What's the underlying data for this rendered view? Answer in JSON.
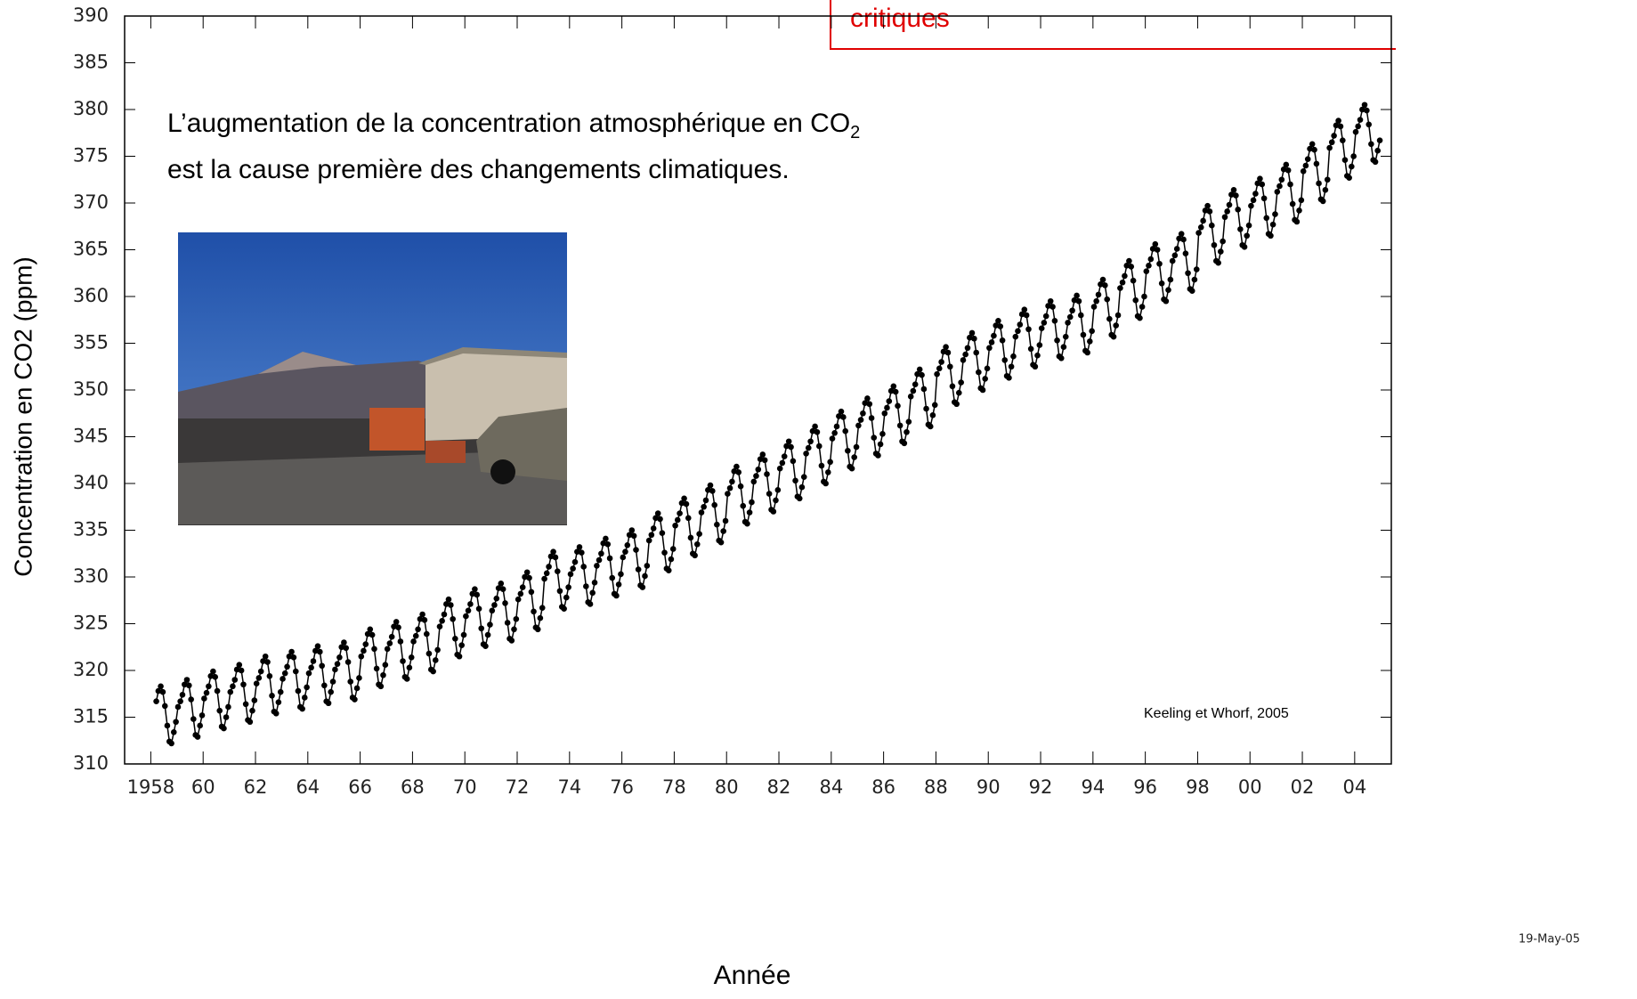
{
  "chart_data": {
    "type": "line",
    "banner": "critiques",
    "annotation": {
      "line1": "L’augmentation de la concentration atmosphérique en CO",
      "subscript": "2",
      "line2": "est la cause première des changements climatiques."
    },
    "source": "Keeling et Whorf, 2005",
    "date_stamp": "19-May-05",
    "xlabel": "Année",
    "ylabel": "Concentration en CO2 (ppm)",
    "color": "#000000",
    "grid": false,
    "xlim": [
      1957,
      2005.4
    ],
    "ylim": [
      310,
      390
    ],
    "yticks": [
      310,
      315,
      320,
      325,
      330,
      335,
      340,
      345,
      350,
      355,
      360,
      365,
      370,
      375,
      380,
      385,
      390
    ],
    "xticks": [
      {
        "value": 1958,
        "label": "1958"
      },
      {
        "value": 1960,
        "label": "60"
      },
      {
        "value": 1962,
        "label": "62"
      },
      {
        "value": 1964,
        "label": "64"
      },
      {
        "value": 1966,
        "label": "66"
      },
      {
        "value": 1968,
        "label": "68"
      },
      {
        "value": 1970,
        "label": "70"
      },
      {
        "value": 1972,
        "label": "72"
      },
      {
        "value": 1974,
        "label": "74"
      },
      {
        "value": 1976,
        "label": "76"
      },
      {
        "value": 1978,
        "label": "78"
      },
      {
        "value": 1980,
        "label": "80"
      },
      {
        "value": 1982,
        "label": "82"
      },
      {
        "value": 1984,
        "label": "84"
      },
      {
        "value": 1986,
        "label": "86"
      },
      {
        "value": 1988,
        "label": "88"
      },
      {
        "value": 1990,
        "label": "90"
      },
      {
        "value": 1992,
        "label": "92"
      },
      {
        "value": 1994,
        "label": "94"
      },
      {
        "value": 1996,
        "label": "96"
      },
      {
        "value": 1998,
        "label": "98"
      },
      {
        "value": 2000,
        "label": "00"
      },
      {
        "value": 2002,
        "label": "02"
      },
      {
        "value": 2004,
        "label": "04"
      }
    ],
    "x": [
      1958.21,
      1958.29,
      1958.38,
      1958.46,
      1958.54,
      1958.63,
      1958.71,
      1958.79,
      1958.88,
      1958.96,
      1959.04,
      1959.13,
      1959.21,
      1959.29,
      1959.38,
      1959.46,
      1959.54,
      1959.63,
      1959.71,
      1959.79,
      1959.88,
      1959.96,
      1960.04,
      1960.13,
      1960.21,
      1960.29,
      1960.38,
      1960.46,
      1960.54,
      1960.63,
      1960.71,
      1960.79,
      1960.88,
      1960.96,
      1961.04,
      1961.13,
      1961.21,
      1961.29,
      1961.38,
      1961.46,
      1961.54,
      1961.63,
      1961.71,
      1961.79,
      1961.88,
      1961.96,
      1962.04,
      1962.13,
      1962.21,
      1962.29,
      1962.38,
      1962.46,
      1962.54,
      1962.63,
      1962.71,
      1962.79,
      1962.88,
      1962.96,
      1963.04,
      1963.13,
      1963.21,
      1963.29,
      1963.38,
      1963.46,
      1963.54,
      1963.63,
      1963.71,
      1963.79,
      1963.88,
      1963.96,
      1964.04,
      1964.13,
      1964.21,
      1964.29,
      1964.38,
      1964.46,
      1964.54,
      1964.63,
      1964.71,
      1964.79,
      1964.88,
      1964.96,
      1965.04,
      1965.13,
      1965.21,
      1965.29,
      1965.38,
      1965.46,
      1965.54,
      1965.63,
      1965.71,
      1965.79,
      1965.88,
      1965.96,
      1966.04,
      1966.13,
      1966.21,
      1966.29,
      1966.38,
      1966.46,
      1966.54,
      1966.63,
      1966.71,
      1966.79,
      1966.88,
      1966.96,
      1967.04,
      1967.13,
      1967.21,
      1967.29,
      1967.38,
      1967.46,
      1967.54,
      1967.63,
      1967.71,
      1967.79,
      1967.88,
      1967.96,
      1968.04,
      1968.13,
      1968.21,
      1968.29,
      1968.38,
      1968.46,
      1968.54,
      1968.63,
      1968.71,
      1968.79,
      1968.88,
      1968.96,
      1969.04,
      1969.13,
      1969.21,
      1969.29,
      1969.38,
      1969.46,
      1969.54,
      1969.63,
      1969.71,
      1969.79,
      1969.88,
      1969.96,
      1970.04,
      1970.13,
      1970.21,
      1970.29,
      1970.38,
      1970.46,
      1970.54,
      1970.63,
      1970.71,
      1970.79,
      1970.88,
      1970.96,
      1971.04,
      1971.13,
      1971.21,
      1971.29,
      1971.38,
      1971.46,
      1971.54,
      1971.63,
      1971.71,
      1971.79,
      1971.88,
      1971.96,
      1972.04,
      1972.13,
      1972.21,
      1972.29,
      1972.38,
      1972.46,
      1972.54,
      1972.63,
      1972.71,
      1972.79,
      1972.88,
      1972.96,
      1973.04,
      1973.13,
      1973.21,
      1973.29,
      1973.38,
      1973.46,
      1973.54,
      1973.63,
      1973.71,
      1973.79,
      1973.88,
      1973.96,
      1974.04,
      1974.13,
      1974.21,
      1974.29,
      1974.38,
      1974.46,
      1974.54,
      1974.63,
      1974.71,
      1974.79,
      1974.88,
      1974.96,
      1975.04,
      1975.13,
      1975.21,
      1975.29,
      1975.38,
      1975.46,
      1975.54,
      1975.63,
      1975.71,
      1975.79,
      1975.88,
      1975.96,
      1976.04,
      1976.13,
      1976.21,
      1976.29,
      1976.38,
      1976.46,
      1976.54,
      1976.63,
      1976.71,
      1976.79,
      1976.88,
      1976.96,
      1977.04,
      1977.13,
      1977.21,
      1977.29,
      1977.38,
      1977.46,
      1977.54,
      1977.63,
      1977.71,
      1977.79,
      1977.88,
      1977.96,
      1978.04,
      1978.13,
      1978.21,
      1978.29,
      1978.38,
      1978.46,
      1978.54,
      1978.63,
      1978.71,
      1978.79,
      1978.88,
      1978.96,
      1979.04,
      1979.13,
      1979.21,
      1979.29,
      1979.38,
      1979.46,
      1979.54,
      1979.63,
      1979.71,
      1979.79,
      1979.88,
      1979.96,
      1980.04,
      1980.13,
      1980.21,
      1980.29,
      1980.38,
      1980.46,
      1980.54,
      1980.63,
      1980.71,
      1980.79,
      1980.88,
      1980.96,
      1981.04,
      1981.13,
      1981.21,
      1981.29,
      1981.38,
      1981.46,
      1981.54,
      1981.63,
      1981.71,
      1981.79,
      1981.88,
      1981.96,
      1982.04,
      1982.13,
      1982.21,
      1982.29,
      1982.38,
      1982.46,
      1982.54,
      1982.63,
      1982.71,
      1982.79,
      1982.88,
      1982.96,
      1983.04,
      1983.13,
      1983.21,
      1983.29,
      1983.38,
      1983.46,
      1983.54,
      1983.63,
      1983.71,
      1983.79,
      1983.88,
      1983.96,
      1984.04,
      1984.13,
      1984.21,
      1984.29,
      1984.38,
      1984.46,
      1984.54,
      1984.63,
      1984.71,
      1984.79,
      1984.88,
      1984.96,
      1985.04,
      1985.13,
      1985.21,
      1985.29,
      1985.38,
      1985.46,
      1985.54,
      1985.63,
      1985.71,
      1985.79,
      1985.88,
      1985.96,
      1986.04,
      1986.13,
      1986.21,
      1986.29,
      1986.38,
      1986.46,
      1986.54,
      1986.63,
      1986.71,
      1986.79,
      1986.88,
      1986.96,
      1987.04,
      1987.13,
      1987.21,
      1987.29,
      1987.38,
      1987.46,
      1987.54,
      1987.63,
      1987.71,
      1987.79,
      1987.88,
      1987.96,
      1988.04,
      1988.13,
      1988.21,
      1988.29,
      1988.38,
      1988.46,
      1988.54,
      1988.63,
      1988.71,
      1988.79,
      1988.88,
      1988.96,
      1989.04,
      1989.13,
      1989.21,
      1989.29,
      1989.38,
      1989.46,
      1989.54,
      1989.63,
      1989.71,
      1989.79,
      1989.88,
      1989.96,
      1990.04,
      1990.13,
      1990.21,
      1990.29,
      1990.38,
      1990.46,
      1990.54,
      1990.63,
      1990.71,
      1990.79,
      1990.88,
      1990.96,
      1991.04,
      1991.13,
      1991.21,
      1991.29,
      1991.38,
      1991.46,
      1991.54,
      1991.63,
      1991.71,
      1991.79,
      1991.88,
      1991.96,
      1992.04,
      1992.13,
      1992.21,
      1992.29,
      1992.38,
      1992.46,
      1992.54,
      1992.63,
      1992.71,
      1992.79,
      1992.88,
      1992.96,
      1993.04,
      1993.13,
      1993.21,
      1993.29,
      1993.38,
      1993.46,
      1993.54,
      1993.63,
      1993.71,
      1993.79,
      1993.88,
      1993.96,
      1994.04,
      1994.13,
      1994.21,
      1994.29,
      1994.38,
      1994.46,
      1994.54,
      1994.63,
      1994.71,
      1994.79,
      1994.88,
      1994.96,
      1995.04,
      1995.13,
      1995.21,
      1995.29,
      1995.38,
      1995.46,
      1995.54,
      1995.63,
      1995.71,
      1995.79,
      1995.88,
      1995.96,
      1996.04,
      1996.13,
      1996.21,
      1996.29,
      1996.38,
      1996.46,
      1996.54,
      1996.63,
      1996.71,
      1996.79,
      1996.88,
      1996.96,
      1997.04,
      1997.13,
      1997.21,
      1997.29,
      1997.38,
      1997.46,
      1997.54,
      1997.63,
      1997.71,
      1997.79,
      1997.88,
      1997.96,
      1998.04,
      1998.13,
      1998.21,
      1998.29,
      1998.38,
      1998.46,
      1998.54,
      1998.63,
      1998.71,
      1998.79,
      1998.88,
      1998.96,
      1999.04,
      1999.13,
      1999.21,
      1999.29,
      1999.38,
      1999.46,
      1999.54,
      1999.63,
      1999.71,
      1999.79,
      1999.88,
      1999.96,
      2000.04,
      2000.13,
      2000.21,
      2000.29,
      2000.38,
      2000.46,
      2000.54,
      2000.63,
      2000.71,
      2000.79,
      2000.88,
      2000.96,
      2001.04,
      2001.13,
      2001.21,
      2001.29,
      2001.38,
      2001.46,
      2001.54,
      2001.63,
      2001.71,
      2001.79,
      2001.88,
      2001.96,
      2002.04,
      2002.13,
      2002.21,
      2002.29,
      2002.38,
      2002.46,
      2002.54,
      2002.63,
      2002.71,
      2002.79,
      2002.88,
      2002.96,
      2003.04,
      2003.13,
      2003.21,
      2003.29,
      2003.38,
      2003.46,
      2003.54,
      2003.63,
      2003.71,
      2003.79,
      2003.88,
      2003.96,
      2004.04,
      2004.13,
      2004.21,
      2004.29,
      2004.38,
      2004.46,
      2004.54,
      2004.63,
      2004.71,
      2004.79,
      2004.88,
      2004.96
    ],
    "values": [
      316.7,
      317.8,
      318.3,
      317.7,
      316.2,
      314.1,
      312.4,
      312.2,
      313.4,
      314.5,
      316.1,
      316.7,
      317.4,
      318.5,
      319.0,
      318.4,
      316.9,
      314.8,
      313.1,
      312.9,
      314.1,
      315.2,
      317.0,
      317.6,
      318.3,
      319.4,
      319.9,
      319.3,
      317.8,
      315.7,
      314.0,
      313.8,
      315.0,
      316.1,
      317.7,
      318.3,
      319.0,
      320.1,
      320.6,
      320.0,
      318.5,
      316.4,
      314.7,
      314.5,
      315.7,
      316.8,
      318.6,
      319.2,
      319.9,
      321.0,
      321.5,
      320.9,
      319.4,
      317.3,
      315.6,
      315.4,
      316.6,
      317.7,
      319.1,
      319.7,
      320.4,
      321.5,
      322.0,
      321.4,
      319.9,
      317.8,
      316.1,
      315.9,
      317.1,
      318.2,
      319.7,
      320.3,
      321.0,
      322.1,
      322.6,
      322.0,
      320.5,
      318.4,
      316.7,
      316.5,
      317.7,
      318.8,
      320.1,
      320.7,
      321.4,
      322.5,
      323.0,
      322.4,
      320.9,
      318.8,
      317.1,
      316.9,
      318.1,
      319.2,
      321.5,
      322.1,
      322.8,
      323.9,
      324.4,
      323.8,
      322.3,
      320.2,
      318.5,
      318.3,
      319.5,
      320.6,
      322.3,
      322.9,
      323.6,
      324.7,
      325.2,
      324.6,
      323.1,
      321.0,
      319.3,
      319.1,
      320.3,
      321.4,
      323.1,
      323.7,
      324.4,
      325.5,
      326.0,
      325.4,
      323.9,
      321.8,
      320.1,
      319.9,
      321.1,
      322.2,
      324.7,
      325.3,
      326.0,
      327.1,
      327.6,
      327.0,
      325.5,
      323.4,
      321.7,
      321.5,
      322.7,
      323.8,
      325.8,
      326.4,
      327.1,
      328.2,
      328.7,
      328.1,
      326.6,
      324.5,
      322.8,
      322.6,
      323.8,
      324.9,
      326.4,
      327.0,
      327.7,
      328.8,
      329.3,
      328.7,
      327.2,
      325.1,
      323.4,
      323.2,
      324.4,
      325.5,
      327.6,
      328.2,
      328.9,
      330.0,
      330.5,
      329.9,
      328.4,
      326.3,
      324.6,
      324.4,
      325.6,
      326.7,
      329.8,
      330.4,
      331.1,
      332.2,
      332.7,
      332.1,
      330.6,
      328.5,
      326.8,
      326.6,
      327.8,
      328.9,
      330.3,
      330.9,
      331.6,
      332.7,
      333.2,
      332.6,
      331.1,
      329.0,
      327.3,
      327.1,
      328.3,
      329.4,
      331.2,
      331.8,
      332.5,
      333.6,
      334.1,
      333.5,
      332.0,
      329.9,
      328.2,
      328.0,
      329.2,
      330.3,
      332.1,
      332.7,
      333.4,
      334.5,
      335.0,
      334.4,
      332.9,
      330.8,
      329.1,
      328.9,
      330.1,
      331.2,
      333.9,
      334.5,
      335.2,
      336.3,
      336.8,
      336.2,
      334.7,
      332.6,
      330.9,
      330.7,
      331.9,
      333.0,
      335.5,
      336.1,
      336.8,
      337.9,
      338.4,
      337.8,
      336.3,
      334.2,
      332.5,
      332.3,
      333.5,
      334.6,
      336.9,
      337.5,
      338.2,
      339.3,
      339.8,
      339.2,
      337.7,
      335.6,
      333.9,
      333.7,
      334.9,
      336.0,
      338.9,
      339.5,
      340.2,
      341.3,
      341.8,
      341.2,
      339.7,
      337.6,
      335.9,
      335.7,
      336.9,
      338.0,
      340.2,
      340.8,
      341.5,
      342.6,
      343.1,
      342.5,
      341.0,
      338.9,
      337.2,
      337.0,
      338.2,
      339.3,
      341.6,
      342.2,
      342.9,
      344.0,
      344.5,
      343.9,
      342.4,
      340.3,
      338.6,
      338.4,
      339.6,
      340.7,
      343.2,
      343.8,
      344.5,
      345.6,
      346.1,
      345.5,
      344.0,
      341.9,
      340.2,
      340.0,
      341.2,
      342.3,
      344.8,
      345.4,
      346.1,
      347.2,
      347.7,
      347.1,
      345.6,
      343.5,
      341.8,
      341.6,
      342.8,
      343.9,
      346.2,
      346.8,
      347.5,
      348.6,
      349.1,
      348.5,
      347.0,
      344.9,
      343.2,
      343.0,
      344.2,
      345.3,
      347.5,
      348.1,
      348.8,
      349.9,
      350.4,
      349.8,
      348.3,
      346.2,
      344.5,
      344.3,
      345.5,
      346.6,
      349.3,
      349.9,
      350.6,
      351.7,
      352.2,
      351.6,
      350.1,
      348.0,
      346.3,
      346.1,
      347.3,
      348.4,
      351.7,
      352.3,
      353.0,
      354.1,
      354.6,
      354.0,
      352.5,
      350.4,
      348.7,
      348.5,
      349.7,
      350.8,
      353.2,
      353.8,
      354.5,
      355.6,
      356.1,
      355.5,
      354.0,
      351.9,
      350.2,
      350.0,
      351.2,
      352.3,
      354.5,
      355.1,
      355.8,
      356.9,
      357.4,
      356.8,
      355.3,
      353.2,
      351.5,
      351.3,
      352.5,
      353.6,
      355.7,
      356.3,
      357.0,
      358.1,
      358.6,
      358.0,
      356.5,
      354.4,
      352.7,
      352.5,
      353.7,
      354.8,
      356.6,
      357.2,
      357.9,
      359.0,
      359.5,
      358.9,
      357.4,
      355.3,
      353.6,
      353.4,
      354.6,
      355.7,
      357.2,
      357.8,
      358.5,
      359.6,
      360.1,
      359.5,
      358.0,
      355.9,
      354.2,
      354.0,
      355.2,
      356.3,
      358.9,
      359.5,
      360.2,
      361.3,
      361.8,
      361.2,
      359.7,
      357.6,
      355.9,
      355.7,
      356.9,
      358.0,
      360.9,
      361.5,
      362.2,
      363.3,
      363.8,
      363.2,
      361.7,
      359.6,
      357.9,
      357.7,
      358.9,
      360.0,
      362.7,
      363.3,
      364.0,
      365.1,
      365.6,
      365.0,
      363.5,
      361.4,
      359.7,
      359.5,
      360.7,
      361.8,
      363.8,
      364.4,
      365.1,
      366.2,
      366.7,
      366.1,
      364.6,
      362.5,
      360.8,
      360.6,
      361.8,
      362.9,
      366.8,
      367.4,
      368.1,
      369.2,
      369.7,
      369.1,
      367.6,
      365.5,
      363.8,
      363.6,
      364.8,
      365.9,
      368.5,
      369.1,
      369.8,
      370.9,
      371.4,
      370.8,
      369.3,
      367.2,
      365.5,
      365.3,
      366.5,
      367.6,
      369.7,
      370.3,
      371.0,
      372.1,
      372.6,
      372.0,
      370.5,
      368.4,
      366.7,
      366.5,
      367.7,
      368.8,
      371.2,
      371.8,
      372.5,
      373.6,
      374.1,
      373.5,
      372.0,
      369.9,
      368.2,
      368.0,
      369.2,
      370.3,
      373.4,
      374.0,
      374.7,
      375.8,
      376.3,
      375.7,
      374.2,
      372.1,
      370.4,
      370.2,
      371.4,
      372.5,
      375.9,
      376.5,
      377.2,
      378.3,
      378.8,
      378.2,
      376.7,
      374.6,
      372.9,
      372.7,
      373.9,
      375.0,
      377.6,
      378.2,
      378.9,
      380.0,
      380.5,
      379.9,
      378.4,
      376.3,
      374.6,
      374.4,
      375.6,
      376.7
    ]
  }
}
